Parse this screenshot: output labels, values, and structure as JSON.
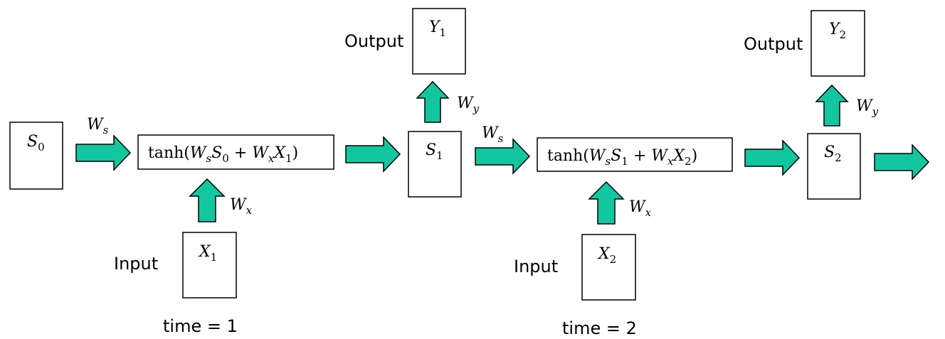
{
  "labels": {
    "output_1": "Output",
    "output_2": "Output",
    "input_1": "Input",
    "input_2": "Input",
    "time_1": "time = 1",
    "time_2": "time = 2"
  },
  "symbols": {
    "s0": {
      "base": "S",
      "sub": "0"
    },
    "s1": {
      "base": "S",
      "sub": "1"
    },
    "s2": {
      "base": "S",
      "sub": "2"
    },
    "x1": {
      "base": "X",
      "sub": "1"
    },
    "x2": {
      "base": "X",
      "sub": "2"
    },
    "y1": {
      "base": "Y",
      "sub": "1"
    },
    "y2": {
      "base": "Y",
      "sub": "2"
    },
    "ws": {
      "base": "W",
      "sub": "s"
    },
    "wx": {
      "base": "W",
      "sub": "x"
    },
    "wy": {
      "base": "W",
      "sub": "y"
    }
  },
  "formulas": {
    "step_1": {
      "func": "tanh(",
      "w1": "W",
      "w1sub": "s",
      "state": "S",
      "statesub": "0",
      "plus": " + ",
      "w2": "W",
      "w2sub": "x",
      "input": "X",
      "inputsub": "1",
      "close": ")"
    },
    "step_2": {
      "func": "tanh(",
      "w1": "W",
      "w1sub": "s",
      "state": "S",
      "statesub": "1",
      "plus": " + ",
      "w2": "W",
      "w2sub": "x",
      "input": "X",
      "inputsub": "2",
      "close": ")"
    }
  },
  "colors": {
    "arrow_fill": "#12c7a0",
    "stroke": "#000000"
  }
}
